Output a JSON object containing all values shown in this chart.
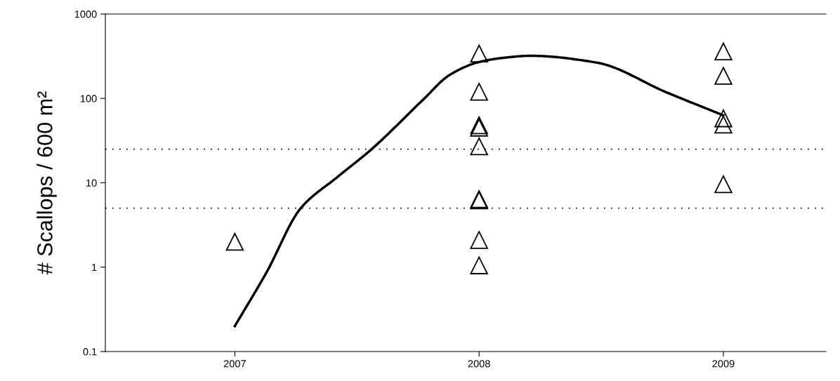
{
  "chart_data": {
    "type": "scatter",
    "ylabel": "# Scallops / 600 m²",
    "log": "y",
    "grid": false,
    "legend": false,
    "marker": "triangle",
    "xlim": [
      2006.47,
      2009.42
    ],
    "xticks": [
      2007,
      2008,
      2009
    ],
    "ylim": [
      0.1,
      1000
    ],
    "yticks": [
      {
        "value": 0.1,
        "label": "0.1"
      },
      1,
      10,
      100,
      1000
    ],
    "series": [
      {
        "color": "#000000",
        "x": [
          2007,
          2008,
          2008,
          2008,
          2008,
          2008,
          2008,
          2008,
          2008,
          2008,
          2009,
          2009,
          2009,
          2009,
          2009
        ],
        "values": [
          2,
          340,
          120,
          48,
          45,
          27,
          6.4,
          6.2,
          2.1,
          1.05,
          360,
          185,
          58,
          49,
          9.6
        ]
      },
      {
        "type": "line",
        "color": "#000000",
        "marker": "none",
        "line_style": "solid",
        "x": [
          2007,
          2007.13,
          2007.27,
          2007.42,
          2007.56,
          2007.77,
          2007.88,
          2008,
          2008.11,
          2008.21,
          2008.48,
          2008.77,
          2009
        ],
        "values": [
          0.2,
          0.87,
          5,
          11.7,
          25,
          96,
          190,
          270,
          305,
          320,
          266,
          117,
          63
        ]
      }
    ],
    "ref_lines": [
      {
        "axis": "y",
        "value": 25,
        "color": "#000000",
        "line_style": "dotted"
      },
      {
        "axis": "y",
        "value": 5,
        "color": "#000000",
        "line_style": "dotted"
      }
    ]
  }
}
